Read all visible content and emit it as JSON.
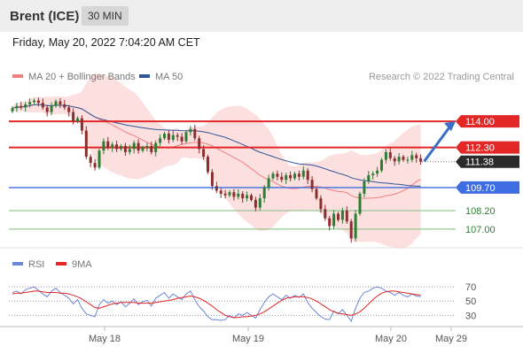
{
  "header": {
    "instrument": "Brent (ICE)",
    "timeframe": "30 MIN"
  },
  "datetime": "Friday, May 20, 2022 7:04:20 AM CET",
  "colors": {
    "up": "#2e7d32",
    "down": "#8b2e2e",
    "ma20": "#f08080",
    "ma50": "#2f5597",
    "band_fill": "#fbd4d4",
    "resistance": "#e32626",
    "support_main": "#3d6de0",
    "support_minor": "#7fbf7f",
    "rsi": "#6b86d6",
    "rsi_ma": "#e32626",
    "arrow": "#3b6fc7"
  },
  "chart_data": [
    {
      "type": "candlestick",
      "legend": [
        "MA 20 + Bollinger Bands",
        "MA 50"
      ],
      "legend_position": "top-left",
      "copyright": "Research © 2022 Trading Central",
      "x_ticks": [
        "May 18",
        "May 19",
        "May 20",
        "May 29"
      ],
      "ylim": [
        105.5,
        115.5
      ],
      "levels": [
        {
          "value": 114.0,
          "label": "114.00",
          "kind": "resistance"
        },
        {
          "value": 112.3,
          "label": "112.30",
          "kind": "resistance"
        },
        {
          "value": 111.38,
          "label": "111.38",
          "kind": "last"
        },
        {
          "value": 109.7,
          "label": "109.70",
          "kind": "support_main"
        },
        {
          "value": 108.2,
          "label": "108.20",
          "kind": "support_minor"
        },
        {
          "value": 107.0,
          "label": "107.00",
          "kind": "support_minor"
        }
      ],
      "arrow": {
        "from_index": 94,
        "from_value": 111.4,
        "to_value": 114.0
      },
      "closes": [
        114.85,
        115.0,
        114.9,
        115.1,
        115.25,
        115.35,
        115.2,
        114.9,
        114.6,
        115.0,
        115.3,
        115.1,
        114.9,
        114.6,
        114.0,
        114.2,
        113.4,
        111.7,
        111.3,
        111.0,
        112.1,
        112.7,
        112.3,
        112.5,
        112.2,
        112.4,
        112.0,
        112.2,
        112.6,
        112.1,
        112.3,
        112.4,
        112.0,
        112.6,
        112.9,
        113.2,
        112.8,
        113.1,
        113.0,
        112.7,
        113.3,
        113.5,
        112.9,
        112.2,
        111.7,
        110.7,
        109.8,
        109.5,
        109.3,
        109.2,
        109.4,
        109.1,
        109.3,
        109.0,
        109.2,
        108.9,
        108.4,
        109.0,
        109.7,
        110.3,
        110.6,
        110.4,
        110.2,
        110.5,
        110.3,
        110.6,
        110.4,
        110.8,
        110.2,
        109.6,
        109.0,
        108.3,
        107.7,
        107.2,
        108.0,
        107.6,
        108.2,
        107.5,
        106.4,
        108.0,
        109.3,
        110.1,
        110.5,
        110.6,
        110.8,
        111.5,
        112.0,
        111.6,
        111.4,
        111.7,
        111.5,
        111.5,
        111.8,
        111.6,
        111.38
      ]
    },
    {
      "type": "line",
      "legend": [
        "RSI",
        "9MA"
      ],
      "y_ticks": [
        70,
        50,
        30
      ],
      "ylim": [
        18,
        80
      ],
      "rsi": [
        62,
        64,
        60,
        66,
        68,
        70,
        65,
        60,
        56,
        64,
        68,
        62,
        58,
        54,
        46,
        52,
        40,
        32,
        30,
        28,
        45,
        52,
        47,
        50,
        45,
        49,
        42,
        47,
        53,
        45,
        49,
        51,
        43,
        54,
        58,
        62,
        54,
        60,
        56,
        52,
        60,
        64,
        52,
        42,
        36,
        28,
        24,
        24,
        23,
        24,
        30,
        26,
        32,
        30,
        34,
        30,
        26,
        38,
        48,
        56,
        60,
        56,
        52,
        58,
        54,
        58,
        55,
        60,
        48,
        40,
        34,
        28,
        25,
        24,
        36,
        32,
        38,
        30,
        22,
        40,
        54,
        62,
        64,
        68,
        70,
        68,
        64,
        62,
        58,
        62,
        58,
        56,
        60,
        57,
        56
      ],
      "rsi_ma": [
        60,
        61,
        61,
        62,
        63,
        64,
        64,
        63,
        62,
        62,
        62,
        61,
        61,
        60,
        58,
        56,
        53,
        49,
        45,
        41,
        40,
        42,
        44,
        46,
        47,
        48,
        48,
        48,
        48,
        47,
        47,
        47,
        47,
        48,
        49,
        50,
        51,
        52,
        54,
        55,
        56,
        57,
        56,
        54,
        51,
        47,
        43,
        38,
        34,
        30,
        28,
        27,
        27,
        28,
        28,
        29,
        30,
        32,
        35,
        39,
        43,
        47,
        51,
        54,
        55,
        56,
        56,
        56,
        55,
        53,
        50,
        46,
        42,
        38,
        35,
        33,
        32,
        31,
        30,
        32,
        35,
        40,
        46,
        52,
        57,
        61,
        63,
        64,
        64,
        63,
        62,
        61,
        60,
        59,
        58
      ]
    }
  ]
}
